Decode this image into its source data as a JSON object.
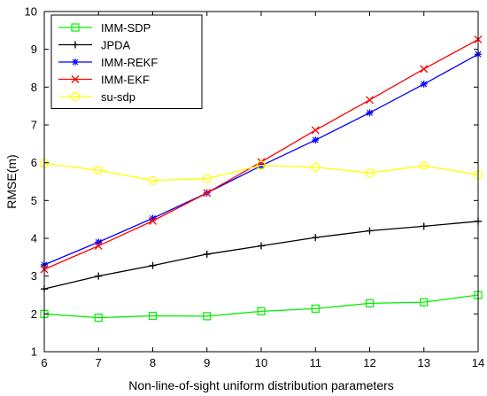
{
  "chart_data": {
    "type": "line",
    "title": "",
    "xlabel": "Non-line-of-sight uniform distribution parameters",
    "ylabel": "RMSE(m)",
    "x": [
      6,
      7,
      8,
      9,
      10,
      11,
      12,
      13,
      14
    ],
    "xlim": [
      6,
      14
    ],
    "ylim": [
      1,
      10
    ],
    "xticks": [
      "6",
      "7",
      "8",
      "9",
      "10",
      "11",
      "12",
      "13",
      "14"
    ],
    "yticks": [
      "1",
      "2",
      "3",
      "4",
      "5",
      "6",
      "7",
      "8",
      "9",
      "10"
    ],
    "grid": false,
    "legend_position": "top-left",
    "series": [
      {
        "name": "IMM-SDP",
        "color": "#00ee00",
        "marker": "square",
        "values": [
          2.0,
          1.9,
          1.95,
          1.94,
          2.07,
          2.14,
          2.28,
          2.31,
          2.5
        ]
      },
      {
        "name": "JPDA",
        "color": "#000000",
        "marker": "plus",
        "values": [
          2.66,
          3.0,
          3.28,
          3.58,
          3.8,
          4.02,
          4.2,
          4.32,
          4.45
        ]
      },
      {
        "name": "IMM-REKF",
        "color": "#0000ff",
        "marker": "asterisk",
        "values": [
          3.3,
          3.9,
          4.53,
          5.2,
          5.92,
          6.6,
          7.32,
          8.08,
          8.87
        ]
      },
      {
        "name": "IMM-EKF",
        "color": "#ff0000",
        "marker": "x",
        "values": [
          3.18,
          3.8,
          4.46,
          5.2,
          6.02,
          6.86,
          7.66,
          8.48,
          9.26
        ]
      },
      {
        "name": "su-sdp",
        "color": "#ffff00",
        "marker": "circle",
        "values": [
          5.98,
          5.8,
          5.53,
          5.58,
          5.93,
          5.88,
          5.73,
          5.92,
          5.68
        ]
      }
    ]
  }
}
